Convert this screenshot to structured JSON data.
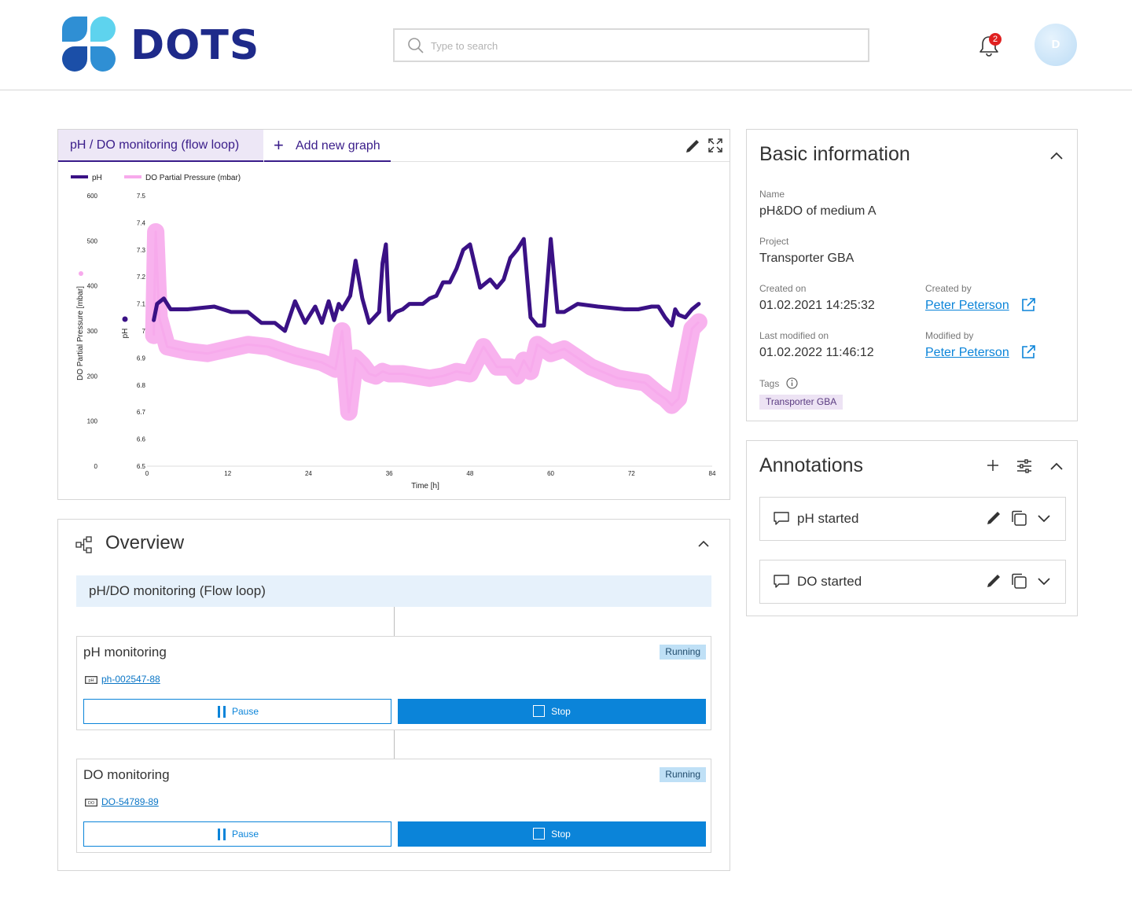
{
  "header": {
    "logo_text": "DOTS",
    "search_placeholder": "Type to search",
    "notification_count": "2",
    "avatar_initial": "D"
  },
  "graph_panel": {
    "active_tab": "pH / DO monitoring (flow loop)",
    "add_tab": "Add new graph"
  },
  "chart_data": {
    "type": "line",
    "xlabel": "Time [h]",
    "ylabel_left": "DO Partial Pressure [mbar]",
    "ylabel_right": "pH",
    "xlim": [
      0,
      84
    ],
    "ylim_do": [
      0,
      600
    ],
    "ylim_ph": [
      6.5,
      7.5
    ],
    "x_ticks": [
      "0",
      "12",
      "24",
      "36",
      "48",
      "60",
      "72",
      "84"
    ],
    "y_ticks_do": [
      "0",
      "100",
      "200",
      "300",
      "400",
      "500",
      "600"
    ],
    "y_ticks_ph": [
      "6.5",
      "6.6",
      "6.7",
      "6.8",
      "6.9",
      "7",
      "7.1",
      "7.2",
      "7.3",
      "7.4",
      "7.5"
    ],
    "legend_position": "top-left",
    "series": [
      {
        "name": "pH",
        "color": "#3a1185",
        "x": [
          1,
          1.5,
          2.5,
          3.5,
          6,
          10,
          12.5,
          15,
          17,
          19,
          20.5,
          22,
          23.5,
          25,
          26,
          27,
          27.8,
          28.5,
          29,
          30.2,
          31,
          32,
          33,
          34.5,
          35,
          35.5,
          36,
          37,
          38,
          39,
          40,
          41,
          42,
          43,
          44,
          45,
          46,
          47,
          48,
          49.5,
          51,
          52,
          53,
          54,
          55,
          56,
          57,
          58,
          59,
          60,
          61,
          62,
          64,
          67,
          71,
          73,
          75,
          76,
          77,
          78,
          78.5,
          79,
          80,
          81,
          82
        ],
        "y": [
          7.04,
          7.1,
          7.12,
          7.08,
          7.08,
          7.09,
          7.07,
          7.07,
          7.03,
          7.03,
          7.0,
          7.11,
          7.03,
          7.09,
          7.03,
          7.11,
          7.04,
          7.1,
          7.08,
          7.13,
          7.26,
          7.12,
          7.03,
          7.07,
          7.25,
          7.32,
          7.04,
          7.07,
          7.08,
          7.1,
          7.1,
          7.1,
          7.12,
          7.13,
          7.18,
          7.18,
          7.23,
          7.3,
          7.32,
          7.16,
          7.19,
          7.16,
          7.19,
          7.27,
          7.3,
          7.34,
          7.05,
          7.02,
          7.02,
          7.34,
          7.07,
          7.07,
          7.1,
          7.09,
          7.08,
          7.08,
          7.09,
          7.09,
          7.05,
          7.02,
          7.08,
          7.06,
          7.05,
          7.08,
          7.1
        ]
      },
      {
        "name": "DO Partial Pressure (mbar)",
        "color": "#f7aaec",
        "x": [
          1,
          1.3,
          1.8,
          3,
          6,
          9,
          12,
          15,
          18,
          22,
          26,
          28,
          29,
          30,
          31,
          32,
          33,
          34,
          35,
          36,
          38,
          40,
          42,
          44,
          46,
          48,
          50,
          52,
          54,
          55,
          56,
          57,
          58,
          60,
          62,
          64,
          66,
          70,
          74,
          76,
          77,
          78,
          79,
          80,
          81,
          82
        ],
        "y": [
          290,
          520,
          330,
          265,
          255,
          250,
          260,
          270,
          265,
          245,
          230,
          215,
          300,
          120,
          240,
          225,
          205,
          200,
          210,
          205,
          205,
          200,
          195,
          200,
          210,
          205,
          265,
          220,
          220,
          200,
          235,
          210,
          270,
          250,
          260,
          240,
          220,
          195,
          185,
          160,
          150,
          135,
          150,
          230,
          305,
          320
        ]
      }
    ]
  },
  "overview": {
    "title": "Overview",
    "flow_name": "pH/DO monitoring (Flow loop)",
    "monitors": [
      {
        "title": "pH monitoring",
        "status": "Running",
        "device_icon_label": "pH",
        "device_id": "ph-002547-88",
        "pause_label": "Pause",
        "stop_label": "Stop"
      },
      {
        "title": "DO monitoring",
        "status": "Running",
        "device_icon_label": "DO",
        "device_id": "DO-54789-89",
        "pause_label": "Pause",
        "stop_label": "Stop"
      }
    ]
  },
  "basic_info": {
    "title": "Basic information",
    "name_label": "Name",
    "name_value": "pH&DO of medium A",
    "project_label": "Project",
    "project_value": "Transporter GBA",
    "created_on_label": "Created on",
    "created_on_value": "01.02.2021 14:25:32",
    "created_by_label": "Created by",
    "created_by_value": "Peter Peterson",
    "modified_on_label": "Last modified on",
    "modified_on_value": "01.02.2022 11:46:12",
    "modified_by_label": "Modified by",
    "modified_by_value": "Peter Peterson",
    "tags_label": "Tags",
    "tag": "Transporter GBA"
  },
  "annotations": {
    "title": "Annotations",
    "items": [
      {
        "label": "pH started"
      },
      {
        "label": "DO started"
      }
    ]
  },
  "colors": {
    "brand": "#1e2a8a",
    "accent": "#0b84d9",
    "ph_series": "#3a1185",
    "do_series": "#f7aaec"
  }
}
